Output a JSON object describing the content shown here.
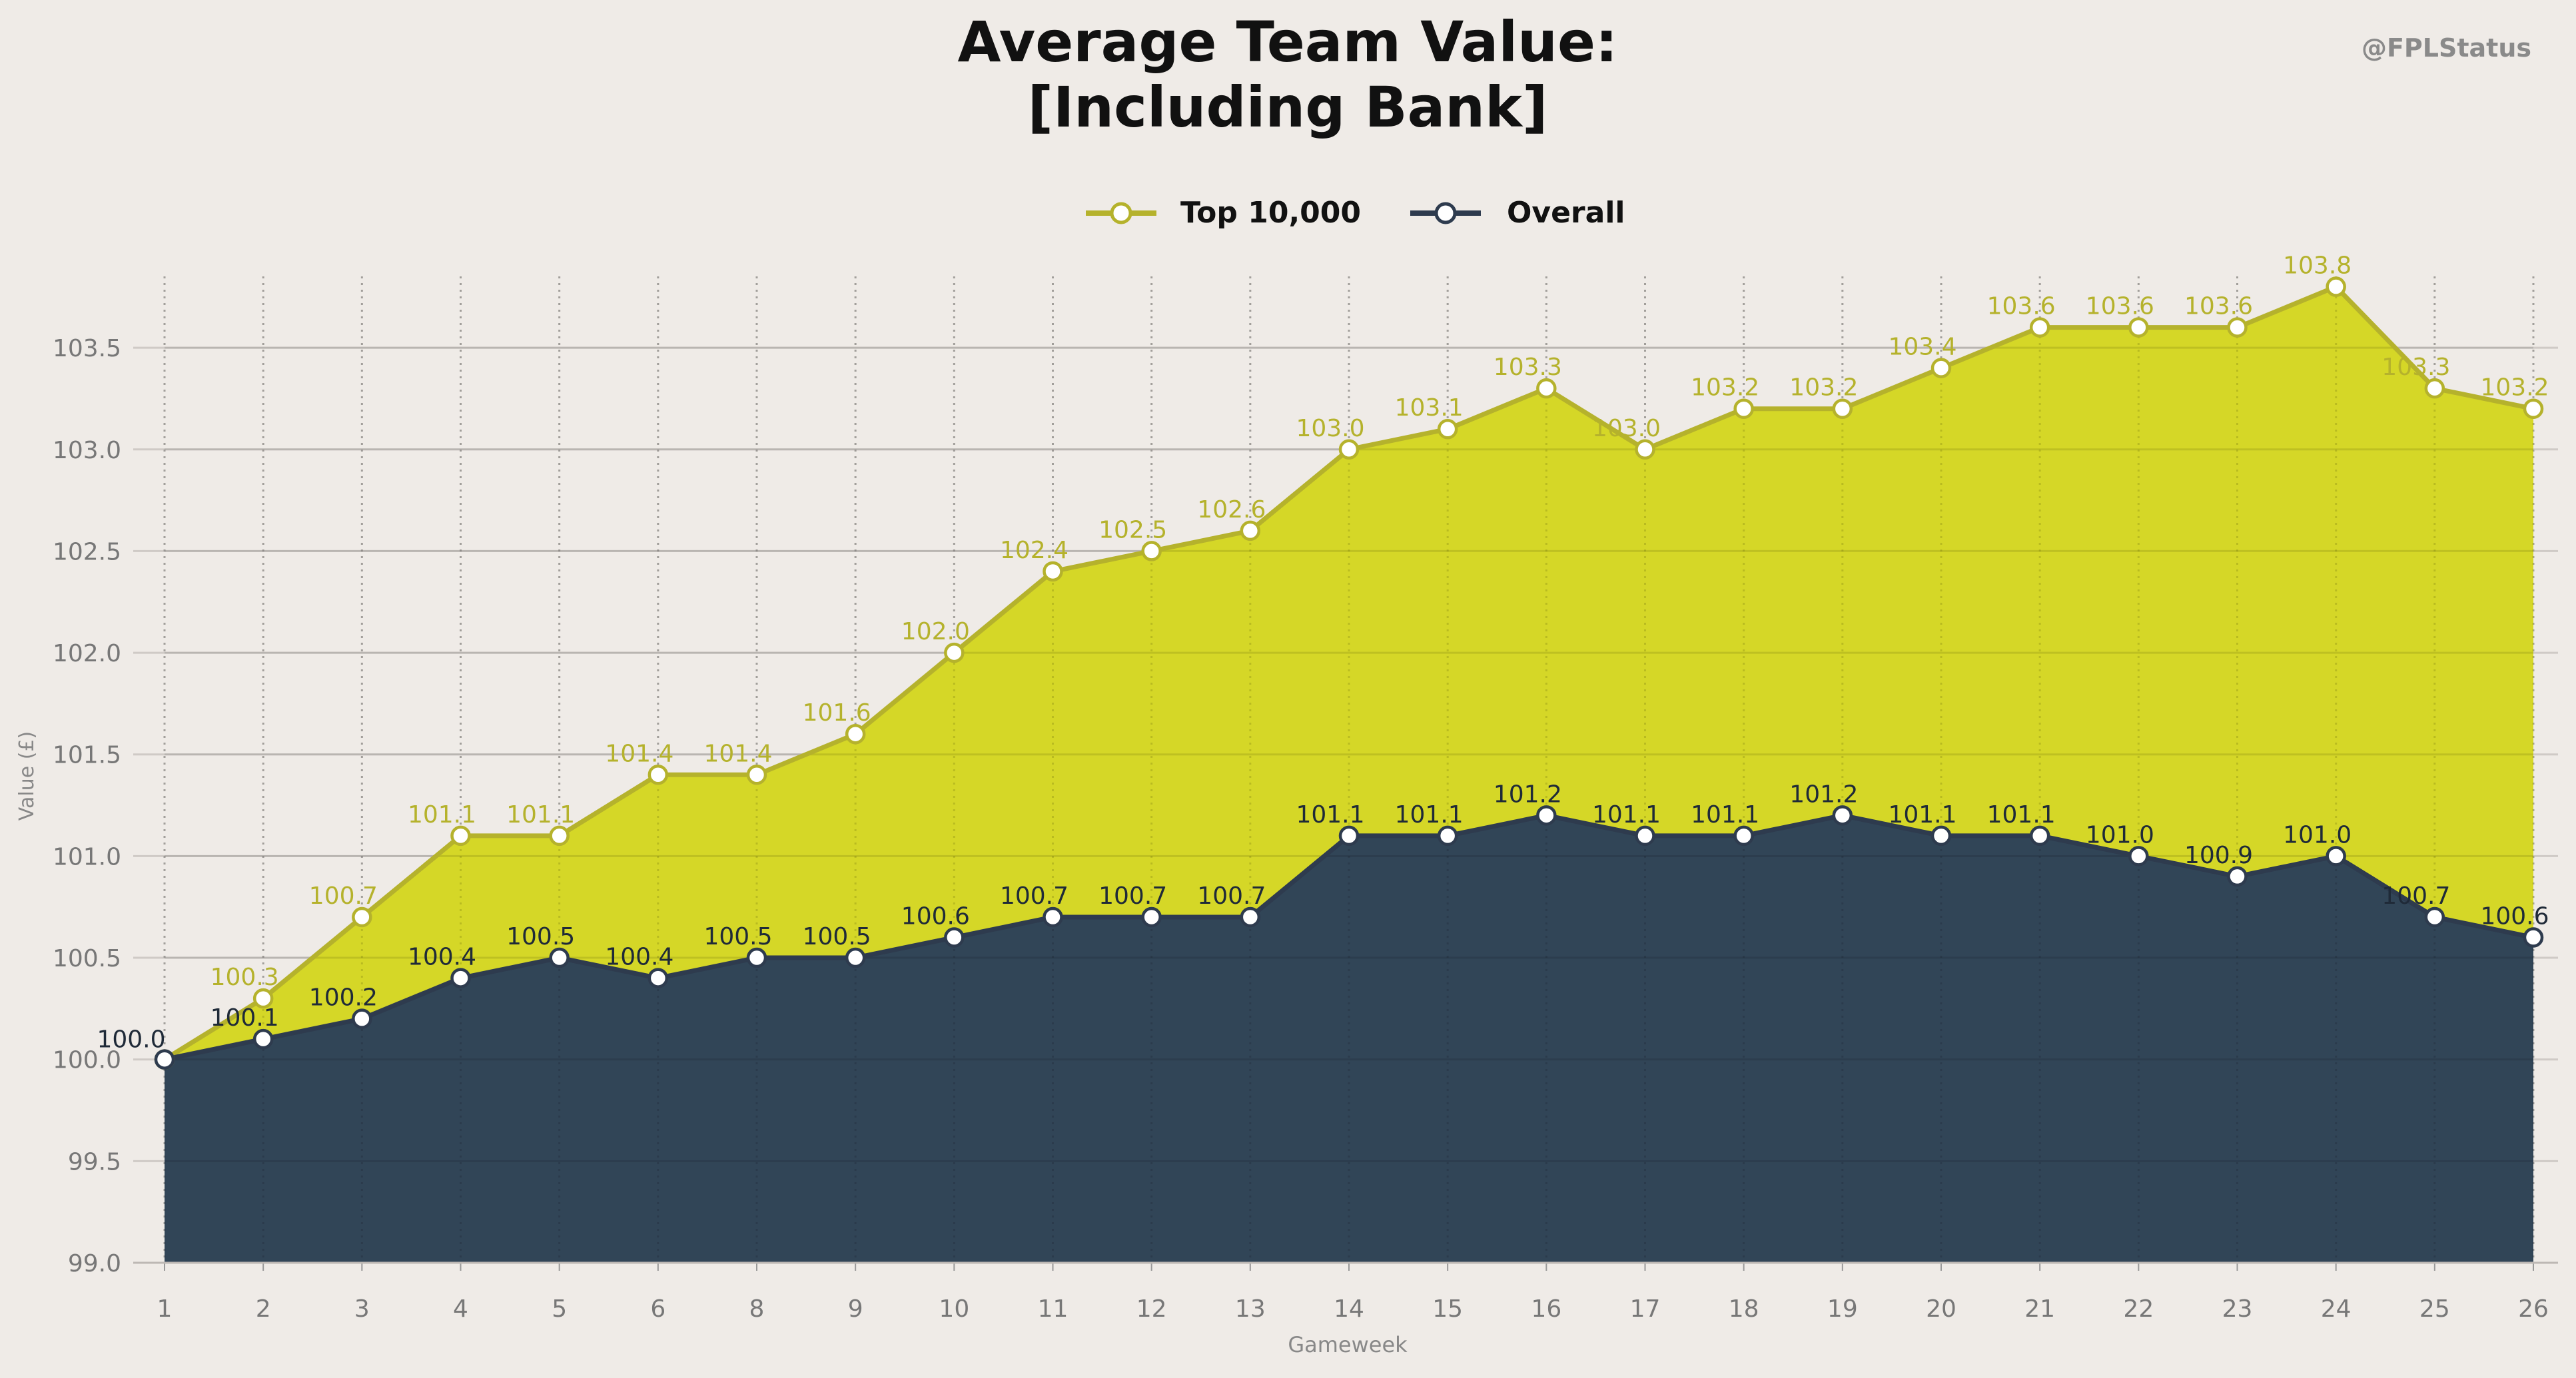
{
  "watermark": "@FPLStatus",
  "chart_data": {
    "type": "area",
    "title": "Average Team Value:",
    "subtitle": "[Including Bank]",
    "xlabel": "Gameweek",
    "ylabel": "Value (£)",
    "x": [
      "1",
      "2",
      "3",
      "4",
      "5",
      "6",
      "8",
      "9",
      "10",
      "11",
      "12",
      "13",
      "14",
      "15",
      "16",
      "17",
      "18",
      "19",
      "20",
      "21",
      "22",
      "23",
      "24",
      "25",
      "26"
    ],
    "ylim": [
      99.0,
      103.9
    ],
    "yticks": [
      "99.0",
      "99.5",
      "100.0",
      "100.5",
      "101.0",
      "101.5",
      "102.0",
      "102.5",
      "103.0",
      "103.5"
    ],
    "grid": true,
    "legend_position": "top-center",
    "series": [
      {
        "name": "Top 10,000",
        "color": "#d4d620",
        "line_color": "#b5b22c",
        "label_color": "#b5b22c",
        "values": [
          100.0,
          100.3,
          100.7,
          101.1,
          101.1,
          101.4,
          101.4,
          101.6,
          102.0,
          102.4,
          102.5,
          102.6,
          103.0,
          103.1,
          103.3,
          103.0,
          103.2,
          103.2,
          103.4,
          103.6,
          103.6,
          103.6,
          103.8,
          103.3,
          103.2
        ],
        "labels": [
          "",
          "100.3",
          "100.7",
          "101.1",
          "101.1",
          "101.4",
          "101.4",
          "101.6",
          "102.0",
          "102.4",
          "102.5",
          "102.6",
          "103.0",
          "103.1",
          "103.3",
          "103.0",
          "103.2",
          "103.2",
          "103.4",
          "103.6",
          "103.6",
          "103.6",
          "103.8",
          "103.3",
          "103.2"
        ]
      },
      {
        "name": "Overall",
        "color": "#2e4159",
        "line_color": "#2e3b4e",
        "label_color": "#1f2a38",
        "values": [
          100.0,
          100.1,
          100.2,
          100.4,
          100.5,
          100.4,
          100.5,
          100.5,
          100.6,
          100.7,
          100.7,
          100.7,
          101.1,
          101.1,
          101.2,
          101.1,
          101.1,
          101.2,
          101.1,
          101.1,
          101.0,
          100.9,
          101.0,
          100.7,
          100.6
        ],
        "labels": [
          "100.0",
          "100.1",
          "100.2",
          "100.4",
          "100.5",
          "100.4",
          "100.5",
          "100.5",
          "100.6",
          "100.7",
          "100.7",
          "100.7",
          "101.1",
          "101.1",
          "101.2",
          "101.1",
          "101.1",
          "101.2",
          "101.1",
          "101.1",
          "101.0",
          "100.9",
          "101.0",
          "100.7",
          "100.6"
        ]
      }
    ]
  }
}
